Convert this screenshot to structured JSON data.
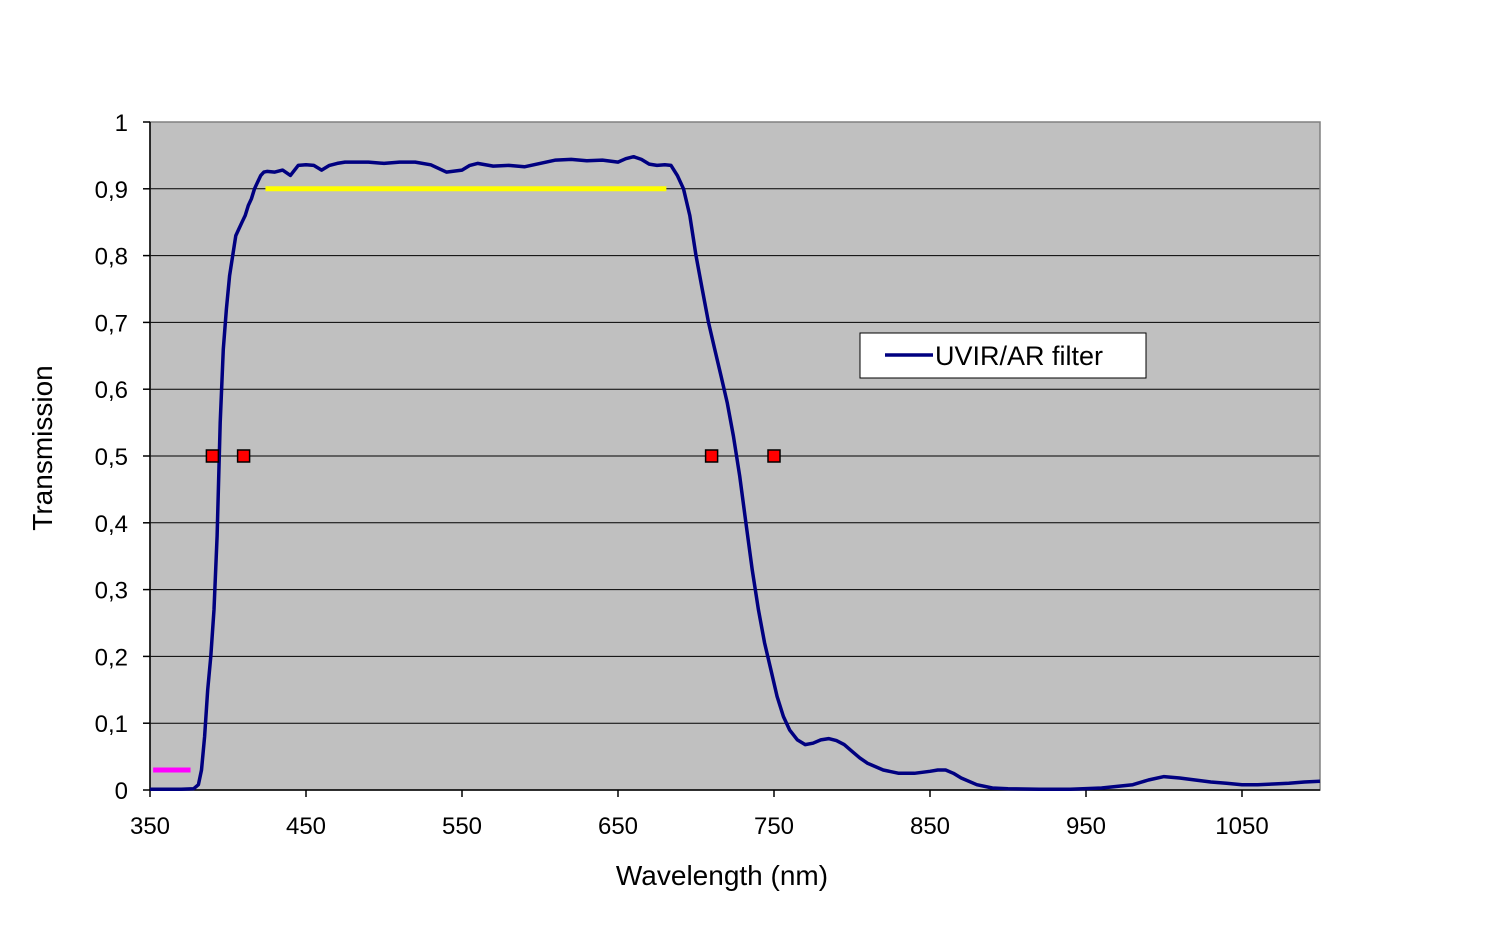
{
  "chart_data": {
    "type": "line",
    "title": "",
    "xlabel": "Wavelength  (nm)",
    "ylabel": "Transmission",
    "xlim": [
      350,
      1100
    ],
    "ylim": [
      0,
      1
    ],
    "x_ticks": [
      350,
      450,
      550,
      650,
      750,
      850,
      950,
      1050
    ],
    "x_tick_labels": [
      "350",
      "450",
      "550",
      "650",
      "750",
      "850",
      "950",
      "1050"
    ],
    "y_ticks": [
      0,
      0.1,
      0.2,
      0.3,
      0.4,
      0.5,
      0.6,
      0.7,
      0.8,
      0.9,
      1
    ],
    "y_tick_labels": [
      "0",
      "0,1",
      "0,2",
      "0,3",
      "0,4",
      "0,5",
      "0,6",
      "0,7",
      "0,8",
      "0,9",
      "1"
    ],
    "grid": "horizontal",
    "plot_background": "#c0c0c0",
    "legend": {
      "position": "right",
      "entries": [
        "UVIR/AR filter"
      ]
    },
    "series": [
      {
        "name": "UVIR/AR filter",
        "color": "#000080",
        "x": [
          350,
          360,
          370,
          378,
          381,
          383,
          385,
          387,
          389,
          391,
          393,
          395,
          397,
          399,
          401,
          403,
          405,
          407,
          409,
          411,
          413,
          415,
          417,
          419,
          421,
          423,
          425,
          430,
          435,
          440,
          445,
          450,
          455,
          460,
          465,
          470,
          475,
          480,
          490,
          500,
          510,
          520,
          530,
          540,
          550,
          555,
          560,
          570,
          580,
          590,
          600,
          610,
          620,
          630,
          640,
          650,
          655,
          660,
          665,
          670,
          675,
          680,
          684,
          688,
          692,
          696,
          700,
          704,
          708,
          712,
          716,
          720,
          724,
          728,
          732,
          736,
          740,
          744,
          748,
          752,
          756,
          760,
          765,
          770,
          775,
          780,
          785,
          790,
          795,
          800,
          805,
          810,
          820,
          830,
          840,
          850,
          855,
          860,
          865,
          870,
          880,
          890,
          900,
          920,
          940,
          960,
          980,
          990,
          1000,
          1010,
          1020,
          1030,
          1040,
          1050,
          1060,
          1070,
          1080,
          1090,
          1100
        ],
        "y": [
          0.001,
          0.001,
          0.001,
          0.002,
          0.008,
          0.03,
          0.08,
          0.15,
          0.2,
          0.27,
          0.38,
          0.55,
          0.66,
          0.72,
          0.77,
          0.8,
          0.83,
          0.84,
          0.85,
          0.86,
          0.875,
          0.885,
          0.9,
          0.91,
          0.92,
          0.925,
          0.926,
          0.925,
          0.928,
          0.92,
          0.935,
          0.936,
          0.935,
          0.928,
          0.935,
          0.938,
          0.94,
          0.94,
          0.94,
          0.938,
          0.94,
          0.94,
          0.936,
          0.925,
          0.928,
          0.935,
          0.938,
          0.934,
          0.935,
          0.933,
          0.938,
          0.943,
          0.944,
          0.942,
          0.943,
          0.94,
          0.945,
          0.948,
          0.944,
          0.937,
          0.935,
          0.936,
          0.935,
          0.92,
          0.9,
          0.86,
          0.8,
          0.75,
          0.7,
          0.66,
          0.62,
          0.58,
          0.53,
          0.47,
          0.4,
          0.33,
          0.27,
          0.22,
          0.18,
          0.14,
          0.11,
          0.09,
          0.075,
          0.068,
          0.07,
          0.075,
          0.077,
          0.074,
          0.068,
          0.058,
          0.048,
          0.04,
          0.03,
          0.025,
          0.025,
          0.028,
          0.03,
          0.03,
          0.025,
          0.018,
          0.008,
          0.003,
          0.002,
          0.001,
          0.001,
          0.003,
          0.008,
          0.015,
          0.02,
          0.018,
          0.015,
          0.012,
          0.01,
          0.008,
          0.008,
          0.009,
          0.01,
          0.012,
          0.013
        ]
      }
    ],
    "annotations": {
      "segments": [
        {
          "name": "magenta-marker",
          "color": "#ff00ff",
          "x": [
            352,
            376
          ],
          "y": 0.03
        },
        {
          "name": "yellow-marker",
          "color": "#ffff00",
          "x": [
            424,
            681
          ],
          "y": 0.9
        }
      ],
      "points": {
        "color": "#ff0000",
        "x": [
          390,
          410,
          710,
          750
        ],
        "y": [
          0.5,
          0.5,
          0.5,
          0.5
        ]
      }
    }
  }
}
